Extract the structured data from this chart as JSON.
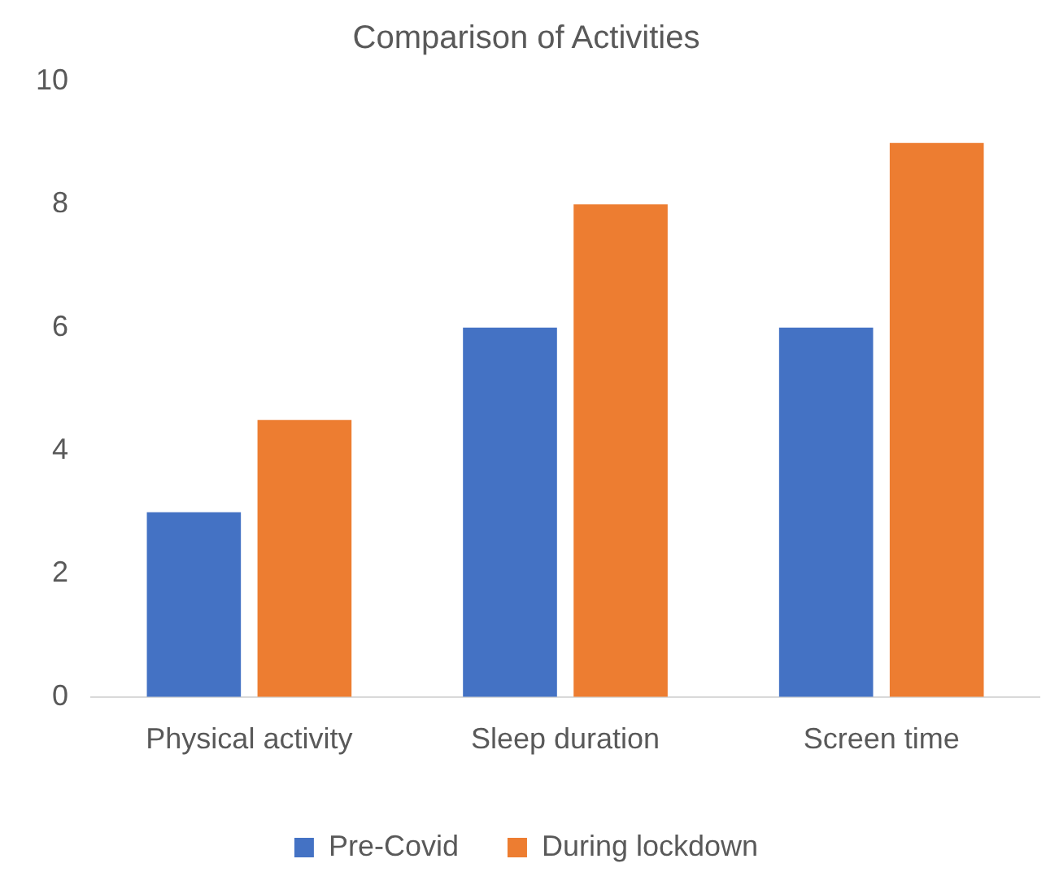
{
  "chart_data": {
    "type": "bar",
    "title": "Comparison of Activities",
    "categories": [
      "Physical activity",
      "Sleep duration",
      "Screen time"
    ],
    "series": [
      {
        "name": "Pre-Covid",
        "color": "#4472c4",
        "values": [
          3,
          6,
          6
        ]
      },
      {
        "name": "During lockdown",
        "color": "#ed7d31",
        "values": [
          4.5,
          8,
          9
        ]
      }
    ],
    "ylim": [
      0,
      10
    ],
    "yticks": [
      0,
      2,
      4,
      6,
      8,
      10
    ],
    "grid": false,
    "legend": "bottom"
  }
}
